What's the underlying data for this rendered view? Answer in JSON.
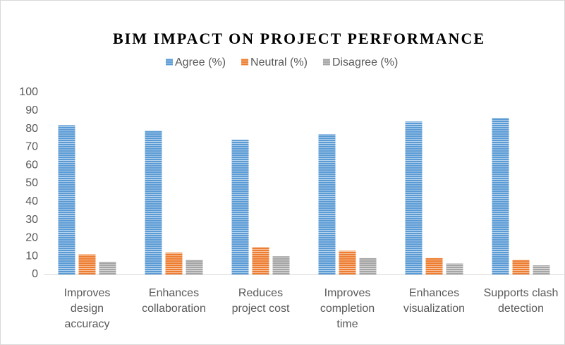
{
  "chart_data": {
    "type": "bar",
    "title": "BIM IMPACT ON PROJECT PERFORMANCE",
    "categories": [
      "Improves design accuracy",
      "Enhances collaboration",
      "Reduces project cost",
      "Improves completion time",
      "Enhances visualization",
      "Supports clash detection"
    ],
    "series": [
      {
        "name": "Agree (%)",
        "color": "#5b9bd5",
        "values": [
          82,
          79,
          74,
          77,
          84,
          86
        ]
      },
      {
        "name": "Neutral (%)",
        "color": "#ed7d31",
        "values": [
          11,
          12,
          15,
          13,
          9,
          8
        ]
      },
      {
        "name": "Disagree (%)",
        "color": "#a5a5a5",
        "values": [
          7,
          8,
          10,
          9,
          6,
          5
        ]
      }
    ],
    "ylim": [
      0,
      100
    ],
    "yticks": [
      0,
      10,
      20,
      30,
      40,
      50,
      60,
      70,
      80,
      90,
      100
    ],
    "grid": false,
    "legend": "top"
  }
}
